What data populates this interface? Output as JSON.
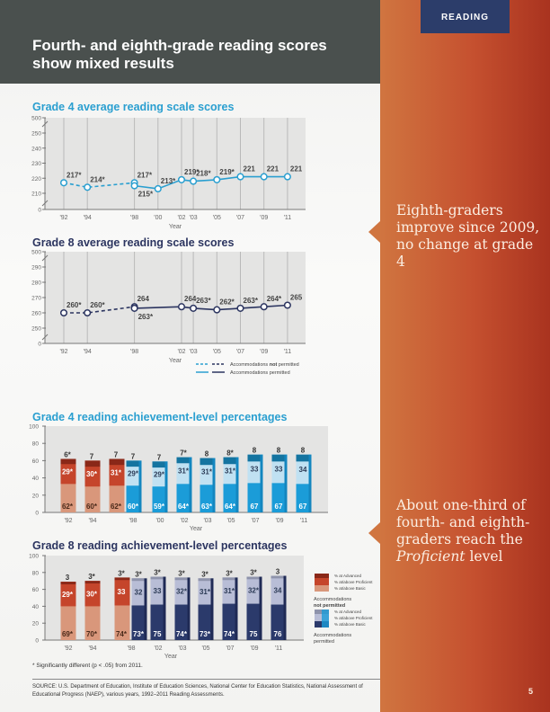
{
  "header": {
    "title": "Fourth- and eighth-grade reading scores show mixed results",
    "section_tab": "READING"
  },
  "callouts": [
    "Eighth-graders improve since 2009, no change at grade 4",
    {
      "pre": "About one-third of fourth- and eighth-graders reach the ",
      "em": "Proficient",
      "post": " level"
    }
  ],
  "footnote": "* Significantly different (p < .05) from 2011.",
  "source": "SOURCE: U.S. Department of Education, Institute of Education Sciences, National Center for Education Statistics, National Assessment of Educational Progress (NAEP), various years, 1992–2011 Reading Assessments.",
  "page_number": "5",
  "colors": {
    "grade4_line": "#2a9fd0",
    "grade8_line": "#2c3560",
    "header_bg": "#4a504e",
    "panel_orange": "#c5502f",
    "tab_navy": "#2c3d6a"
  },
  "legend_lines": {
    "not_permitted_pre": "Accommodations ",
    "not_permitted_bold": "not",
    "not_permitted_post": " permitted",
    "permitted": "Accommodations permitted"
  },
  "chart_data": [
    {
      "type": "line",
      "title": "Grade 4 average reading scale scores",
      "xlabel": "Year",
      "ylabel": "",
      "yticks": [
        "0",
        "210",
        "220",
        "230",
        "240",
        "250",
        "500"
      ],
      "axis_break": true,
      "xticks": [
        "'92",
        "'94",
        "'98",
        "'00",
        "'02",
        "'03",
        "'05",
        "'07",
        "'09",
        "'11"
      ],
      "series": [
        {
          "name": "Accommodations not permitted",
          "style": "dashed",
          "x": [
            1992,
            1994,
            1998
          ],
          "labels": [
            "217*",
            "214*",
            "217*"
          ]
        },
        {
          "name": "Accommodations permitted",
          "style": "solid",
          "x": [
            1998,
            2000,
            2002,
            2003,
            2005,
            2007,
            2009,
            2011
          ],
          "labels": [
            "215*",
            "213*",
            "219*",
            "218*",
            "219*",
            "221",
            "221",
            "221"
          ]
        }
      ]
    },
    {
      "type": "line",
      "title": "Grade 8 average reading scale scores",
      "xlabel": "Year",
      "ylabel": "",
      "yticks": [
        "0",
        "250",
        "260",
        "270",
        "280",
        "290",
        "500"
      ],
      "axis_break": true,
      "xticks": [
        "'92",
        "'94",
        "'98",
        "'02",
        "'03",
        "'05",
        "'07",
        "'09",
        "'11"
      ],
      "series": [
        {
          "name": "Accommodations not permitted",
          "style": "dashed",
          "x": [
            1992,
            1994,
            1998
          ],
          "labels": [
            "260*",
            "260*",
            "264"
          ]
        },
        {
          "name": "Accommodations permitted",
          "style": "solid",
          "x": [
            1998,
            2002,
            2003,
            2005,
            2007,
            2009,
            2011
          ],
          "labels": [
            "263*",
            "264",
            "263*",
            "262*",
            "263*",
            "264*",
            "265"
          ]
        }
      ]
    },
    {
      "type": "bar",
      "stacked": "overlapping",
      "title": "Grade 4 reading achievement-level percentages",
      "xlabel": "Year",
      "yticks": [
        "0",
        "20",
        "40",
        "60",
        "80",
        "100"
      ],
      "ylim": [
        0,
        100
      ],
      "xticks": [
        "'92",
        "'94",
        "'98",
        "'00",
        "'02",
        "'03",
        "'05",
        "'07",
        "'09",
        "'11"
      ],
      "bars": [
        {
          "year": "'92",
          "accommodations": "not permitted",
          "basic": "62*",
          "proficient": "29*",
          "advanced": "6*"
        },
        {
          "year": "'94",
          "accommodations": "not permitted",
          "basic": "60*",
          "proficient": "30*",
          "advanced": "7"
        },
        {
          "year": "'98",
          "accommodations": "not permitted",
          "basic": "62*",
          "proficient": "31*",
          "advanced": "7"
        },
        {
          "year": "'98",
          "accommodations": "permitted",
          "basic": "60*",
          "proficient": "29*",
          "advanced": "7"
        },
        {
          "year": "'00",
          "accommodations": "permitted",
          "basic": "59*",
          "proficient": "29*",
          "advanced": "7"
        },
        {
          "year": "'02",
          "accommodations": "permitted",
          "basic": "64*",
          "proficient": "31*",
          "advanced": "7*"
        },
        {
          "year": "'03",
          "accommodations": "permitted",
          "basic": "63*",
          "proficient": "31*",
          "advanced": "8"
        },
        {
          "year": "'05",
          "accommodations": "permitted",
          "basic": "64*",
          "proficient": "31*",
          "advanced": "8*"
        },
        {
          "year": "'07",
          "accommodations": "permitted",
          "basic": "67",
          "proficient": "33",
          "advanced": "8"
        },
        {
          "year": "'09",
          "accommodations": "permitted",
          "basic": "67",
          "proficient": "33",
          "advanced": "8"
        },
        {
          "year": "'11",
          "accommodations": "permitted",
          "basic": "67",
          "proficient": "34",
          "advanced": "8"
        }
      ]
    },
    {
      "type": "bar",
      "stacked": "overlapping",
      "title": "Grade 8 reading achievement-level percentages",
      "xlabel": "Year",
      "yticks": [
        "0",
        "20",
        "40",
        "60",
        "80",
        "100"
      ],
      "ylim": [
        0,
        100
      ],
      "xticks": [
        "'92",
        "'94",
        "'98",
        "'02",
        "'03",
        "'05",
        "'07",
        "'09",
        "'11"
      ],
      "legend": {
        "items": [
          "% at Advanced",
          "% at/above Proficient",
          "% at/above Basic"
        ],
        "not_permitted": "Accommodations not permitted",
        "permitted": "Accommodations permitted"
      },
      "bars": [
        {
          "year": "'92",
          "accommodations": "not permitted",
          "basic": "69*",
          "proficient": "29*",
          "advanced": "3"
        },
        {
          "year": "'94",
          "accommodations": "not permitted",
          "basic": "70*",
          "proficient": "30*",
          "advanced": "3*"
        },
        {
          "year": "'98",
          "accommodations": "not permitted",
          "basic": "74*",
          "proficient": "33",
          "advanced": "3*"
        },
        {
          "year": "'98",
          "accommodations": "permitted",
          "basic": "73*",
          "proficient": "32",
          "advanced": "3*"
        },
        {
          "year": "'02",
          "accommodations": "permitted",
          "basic": "75",
          "proficient": "33",
          "advanced": "3*"
        },
        {
          "year": "'03",
          "accommodations": "permitted",
          "basic": "74*",
          "proficient": "32*",
          "advanced": "3*"
        },
        {
          "year": "'05",
          "accommodations": "permitted",
          "basic": "73*",
          "proficient": "31*",
          "advanced": "3*"
        },
        {
          "year": "'07",
          "accommodations": "permitted",
          "basic": "74*",
          "proficient": "31*",
          "advanced": "3*"
        },
        {
          "year": "'09",
          "accommodations": "permitted",
          "basic": "75",
          "proficient": "32*",
          "advanced": "3*"
        },
        {
          "year": "'11",
          "accommodations": "permitted",
          "basic": "76",
          "proficient": "34",
          "advanced": "3"
        }
      ]
    }
  ]
}
